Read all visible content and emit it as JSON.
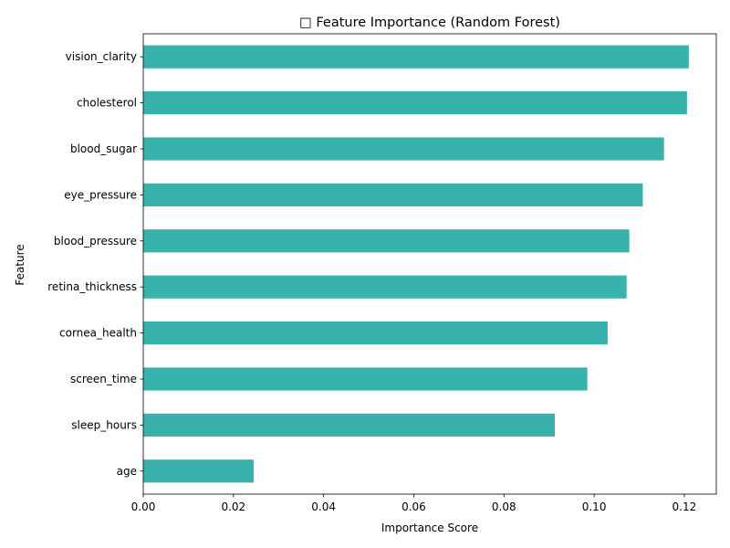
{
  "chart_data": {
    "type": "bar",
    "orientation": "horizontal",
    "title": "□ Feature Importance (Random Forest)",
    "xlabel": "Importance Score",
    "ylabel": "Feature",
    "categories": [
      "age",
      "sleep_hours",
      "screen_time",
      "cornea_health",
      "retina_thickness",
      "blood_pressure",
      "eye_pressure",
      "blood_sugar",
      "cholesterol",
      "vision_clarity"
    ],
    "values": [
      0.0245,
      0.0913,
      0.0985,
      0.103,
      0.1072,
      0.1078,
      0.1108,
      0.1155,
      0.1206,
      0.121
    ],
    "xlim": [
      0,
      0.1271
    ],
    "xticks": [
      0.0,
      0.02,
      0.04,
      0.06,
      0.08,
      0.1,
      0.12
    ],
    "xtick_labels": [
      "0.00",
      "0.02",
      "0.04",
      "0.06",
      "0.08",
      "0.10",
      "0.12"
    ],
    "bar_color": "#38b2ac",
    "grid": false,
    "legend": false
  }
}
